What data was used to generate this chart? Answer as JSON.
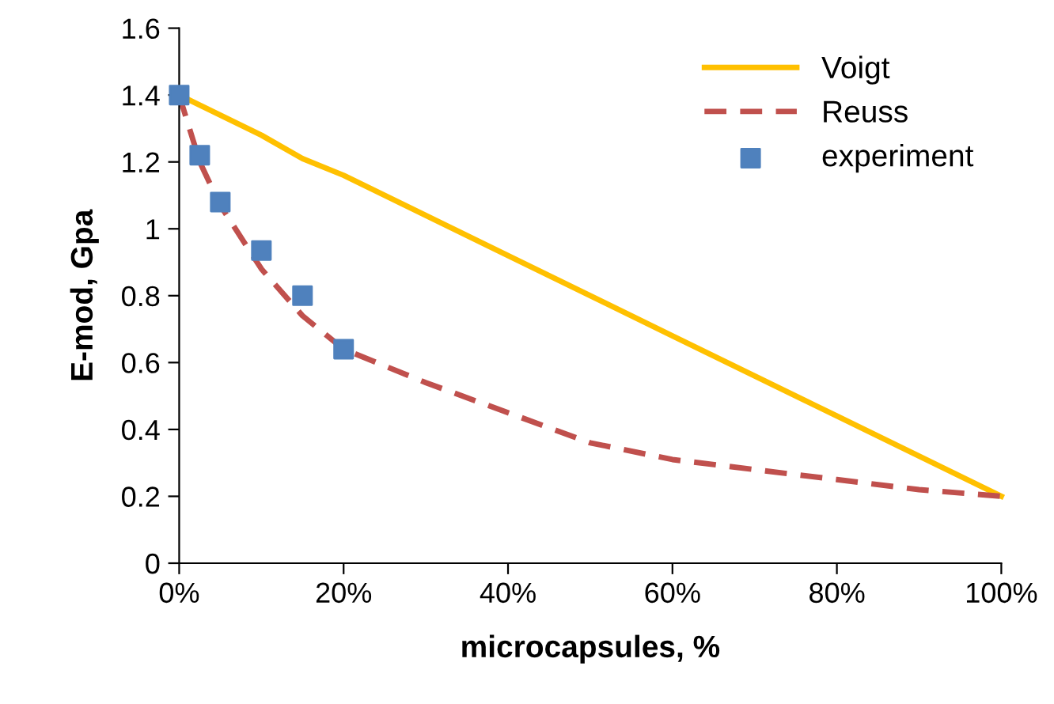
{
  "chart_data": {
    "type": "line",
    "xlabel": "microcapsules, %",
    "ylabel": "E-mod, Gpa",
    "xlim": [
      0,
      100
    ],
    "xticks": [
      {
        "value": 0,
        "label": "0%"
      },
      {
        "value": 20,
        "label": "20%"
      },
      {
        "value": 40,
        "label": "40%"
      },
      {
        "value": 60,
        "label": "60%"
      },
      {
        "value": 80,
        "label": "80%"
      },
      {
        "value": 100,
        "label": "100%"
      }
    ],
    "ylim": [
      0,
      1.6
    ],
    "yticks": [
      0,
      0.2,
      0.4,
      0.6,
      0.8,
      1,
      1.2,
      1.4,
      1.6
    ],
    "grid": false,
    "legend": "top right",
    "series": [
      {
        "name": "Voigt",
        "line_style": "solid",
        "color": "#ffc000",
        "x": [
          0,
          10,
          15,
          20,
          40,
          60,
          80,
          100
        ],
        "values": [
          1.4,
          1.28,
          1.21,
          1.16,
          0.92,
          0.68,
          0.44,
          0.2
        ]
      },
      {
        "name": "Reuss",
        "line_style": "dashed",
        "color": "#c0504d",
        "x": [
          0,
          2.5,
          5,
          10,
          15,
          20,
          30,
          40,
          50,
          60,
          70,
          80,
          90,
          100
        ],
        "values": [
          1.4,
          1.2,
          1.07,
          0.88,
          0.74,
          0.64,
          0.54,
          0.45,
          0.36,
          0.31,
          0.28,
          0.25,
          0.22,
          0.2
        ]
      },
      {
        "name": "experiment",
        "type": "scatter",
        "marker": "square",
        "color": "#4f81bd",
        "x": [
          0,
          2.5,
          5,
          10,
          15,
          20
        ],
        "values": [
          1.4,
          1.22,
          1.08,
          0.935,
          0.8,
          0.64
        ]
      }
    ]
  }
}
